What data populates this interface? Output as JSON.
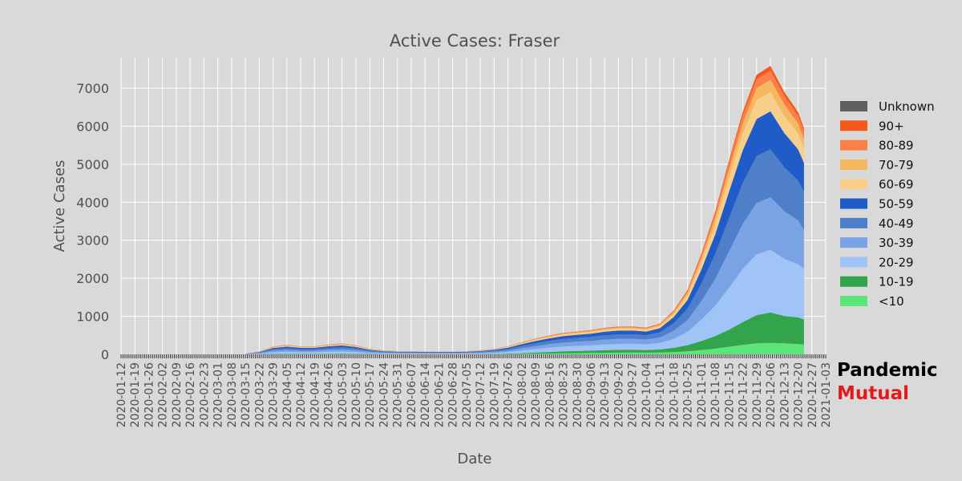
{
  "chart_data": {
    "type": "area",
    "stacked": true,
    "title": "Active Cases: Fraser",
    "xlabel": "Date",
    "ylabel": "Active Cases",
    "ylim": [
      0,
      7800
    ],
    "yticks": [
      0,
      1000,
      2000,
      3000,
      4000,
      5000,
      6000,
      7000
    ],
    "xlim": [
      "2020-01-12",
      "2021-01-03"
    ],
    "xticks": [
      "2020-01-12",
      "2020-01-19",
      "2020-01-26",
      "2020-02-02",
      "2020-02-09",
      "2020-02-16",
      "2020-02-23",
      "2020-03-01",
      "2020-03-08",
      "2020-03-15",
      "2020-03-22",
      "2020-03-29",
      "2020-04-05",
      "2020-04-12",
      "2020-04-19",
      "2020-04-26",
      "2020-05-03",
      "2020-05-10",
      "2020-05-17",
      "2020-05-24",
      "2020-05-31",
      "2020-06-07",
      "2020-06-14",
      "2020-06-21",
      "2020-06-28",
      "2020-07-05",
      "2020-07-12",
      "2020-07-19",
      "2020-07-26",
      "2020-08-02",
      "2020-08-09",
      "2020-08-16",
      "2020-08-23",
      "2020-08-30",
      "2020-09-06",
      "2020-09-13",
      "2020-09-20",
      "2020-09-27",
      "2020-10-04",
      "2020-10-11",
      "2020-10-18",
      "2020-10-25",
      "2020-11-01",
      "2020-11-08",
      "2020-11-15",
      "2020-11-22",
      "2020-11-29",
      "2020-12-06",
      "2020-12-13",
      "2020-12-20",
      "2020-12-27",
      "2021-01-03"
    ],
    "grid": true,
    "legend_position": "right",
    "x": [
      "2020-03-15",
      "2020-03-22",
      "2020-03-29",
      "2020-04-05",
      "2020-04-12",
      "2020-04-19",
      "2020-04-26",
      "2020-05-03",
      "2020-05-10",
      "2020-05-17",
      "2020-05-24",
      "2020-05-31",
      "2020-06-07",
      "2020-06-14",
      "2020-06-21",
      "2020-06-28",
      "2020-07-05",
      "2020-07-12",
      "2020-07-19",
      "2020-07-26",
      "2020-08-02",
      "2020-08-09",
      "2020-08-16",
      "2020-08-23",
      "2020-08-30",
      "2020-09-06",
      "2020-09-13",
      "2020-09-20",
      "2020-09-27",
      "2020-10-04",
      "2020-10-11",
      "2020-10-18",
      "2020-10-25",
      "2020-11-01",
      "2020-11-08",
      "2020-11-15",
      "2020-11-22",
      "2020-11-29",
      "2020-12-06",
      "2020-12-13",
      "2020-12-20",
      "2020-12-23"
    ],
    "series": [
      {
        "name": "<10",
        "color": "#5ce67a",
        "values": [
          0,
          1,
          4,
          5,
          4,
          4,
          5,
          6,
          5,
          3,
          2,
          2,
          2,
          2,
          2,
          2,
          2,
          3,
          4,
          6,
          10,
          16,
          22,
          28,
          32,
          36,
          40,
          44,
          46,
          44,
          48,
          60,
          80,
          110,
          150,
          200,
          250,
          290,
          300,
          290,
          270,
          260
        ]
      },
      {
        "name": "10-19",
        "color": "#33a34c",
        "values": [
          1,
          4,
          10,
          12,
          10,
          10,
          12,
          14,
          12,
          7,
          5,
          4,
          4,
          4,
          4,
          4,
          4,
          6,
          8,
          12,
          20,
          30,
          40,
          50,
          55,
          60,
          70,
          75,
          75,
          70,
          80,
          110,
          160,
          240,
          330,
          450,
          600,
          740,
          800,
          720,
          700,
          660
        ]
      },
      {
        "name": "20-29",
        "color": "#a0c4f5",
        "values": [
          4,
          15,
          40,
          48,
          40,
          40,
          50,
          55,
          45,
          28,
          20,
          16,
          16,
          15,
          15,
          15,
          16,
          20,
          28,
          40,
          70,
          90,
          110,
          125,
          135,
          140,
          150,
          155,
          155,
          150,
          170,
          240,
          350,
          560,
          800,
          1100,
          1400,
          1600,
          1650,
          1500,
          1400,
          1330
        ]
      },
      {
        "name": "30-39",
        "color": "#7aa3e5",
        "values": [
          4,
          15,
          40,
          48,
          40,
          40,
          50,
          55,
          45,
          28,
          20,
          16,
          16,
          15,
          15,
          15,
          16,
          20,
          28,
          40,
          60,
          80,
          95,
          105,
          110,
          115,
          125,
          130,
          130,
          125,
          145,
          210,
          310,
          490,
          700,
          950,
          1180,
          1350,
          1380,
          1260,
          1150,
          1020
        ]
      },
      {
        "name": "40-49",
        "color": "#4f7fc9",
        "values": [
          4,
          15,
          40,
          48,
          40,
          40,
          50,
          55,
          45,
          28,
          20,
          16,
          16,
          15,
          15,
          15,
          16,
          20,
          28,
          40,
          60,
          75,
          85,
          95,
          100,
          105,
          115,
          120,
          120,
          115,
          135,
          200,
          300,
          460,
          650,
          880,
          1080,
          1230,
          1260,
          1150,
          1050,
          1000
        ]
      },
      {
        "name": "50-59",
        "color": "#1f5cc7",
        "values": [
          4,
          14,
          35,
          42,
          36,
          36,
          44,
          48,
          40,
          25,
          18,
          14,
          14,
          14,
          14,
          14,
          14,
          18,
          24,
          34,
          50,
          60,
          70,
          78,
          82,
          88,
          95,
          100,
          100,
          95,
          110,
          160,
          230,
          370,
          520,
          700,
          860,
          980,
          1000,
          900,
          820,
          760
        ]
      },
      {
        "name": "60-69",
        "color": "#f7cf8a",
        "values": [
          2,
          7,
          18,
          22,
          18,
          18,
          22,
          24,
          20,
          12,
          9,
          8,
          8,
          8,
          8,
          8,
          8,
          10,
          12,
          18,
          25,
          30,
          35,
          40,
          42,
          45,
          48,
          50,
          50,
          48,
          55,
          80,
          120,
          190,
          270,
          360,
          440,
          500,
          510,
          460,
          420,
          390
        ]
      },
      {
        "name": "70-79",
        "color": "#f5b861",
        "values": [
          1,
          4,
          10,
          12,
          10,
          10,
          12,
          14,
          12,
          7,
          5,
          4,
          4,
          4,
          4,
          4,
          4,
          5,
          7,
          10,
          14,
          16,
          18,
          20,
          22,
          24,
          26,
          28,
          28,
          26,
          30,
          45,
          70,
          110,
          160,
          220,
          270,
          310,
          320,
          290,
          260,
          240
        ]
      },
      {
        "name": "80-89",
        "color": "#fb8048",
        "values": [
          1,
          3,
          8,
          10,
          8,
          8,
          10,
          11,
          9,
          6,
          4,
          3,
          3,
          3,
          3,
          3,
          3,
          4,
          5,
          8,
          10,
          12,
          14,
          15,
          16,
          17,
          18,
          19,
          19,
          18,
          22,
          32,
          50,
          80,
          115,
          160,
          200,
          230,
          240,
          220,
          200,
          190
        ]
      },
      {
        "name": "90+",
        "color": "#f55a1b",
        "values": [
          0,
          1,
          3,
          4,
          3,
          3,
          4,
          5,
          4,
          2,
          2,
          1,
          1,
          1,
          1,
          1,
          1,
          2,
          2,
          3,
          4,
          5,
          6,
          7,
          7,
          8,
          8,
          9,
          9,
          8,
          10,
          15,
          25,
          40,
          55,
          80,
          100,
          120,
          125,
          110,
          100,
          95
        ]
      },
      {
        "name": "Unknown",
        "color": "#5e5e5e",
        "values": [
          0,
          0,
          0,
          0,
          0,
          0,
          0,
          0,
          0,
          0,
          0,
          0,
          0,
          0,
          0,
          0,
          0,
          0,
          0,
          0,
          0,
          0,
          0,
          0,
          0,
          0,
          0,
          0,
          0,
          0,
          0,
          0,
          0,
          0,
          0,
          0,
          0,
          0,
          0,
          0,
          0,
          0
        ]
      }
    ]
  },
  "brand": {
    "line1": "Pandemic",
    "line2": "Mutual",
    "line1_color": "#000000",
    "line2_color": "#e31a1c"
  }
}
